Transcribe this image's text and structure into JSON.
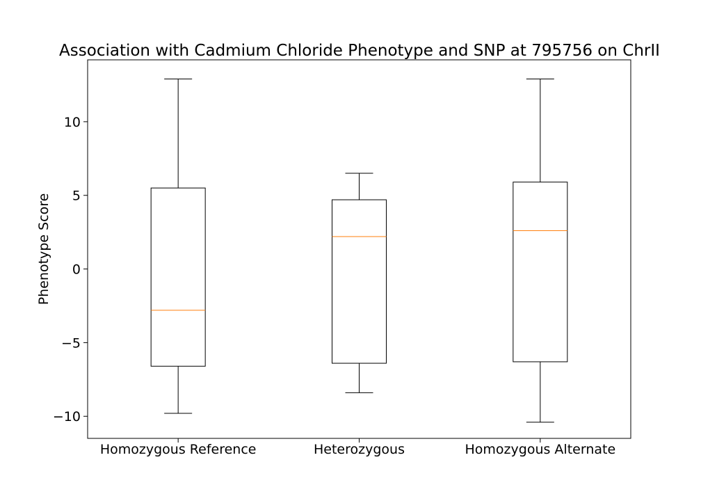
{
  "chart_data": {
    "type": "box",
    "title": "Association with Cadmium Chloride Phenotype and SNP at 795756 on ChrII",
    "xlabel": "",
    "ylabel": "Phenotype Score",
    "ylim": [
      -11.5,
      14.2
    ],
    "yticks": [
      10,
      5,
      0,
      -5,
      -10
    ],
    "ytick_labels": [
      "10",
      "5",
      "0",
      "−5",
      "−10"
    ],
    "grid": false,
    "categories": [
      "Homozygous Reference",
      "Heterozygous",
      "Homozygous Alternate"
    ],
    "boxes": [
      {
        "category": "Homozygous Reference",
        "whisker_low": -9.8,
        "q1": -6.6,
        "median": -2.8,
        "q3": 5.5,
        "whisker_high": 12.9
      },
      {
        "category": "Heterozygous",
        "whisker_low": -8.4,
        "q1": -6.4,
        "median": 2.2,
        "q3": 4.7,
        "whisker_high": 6.5
      },
      {
        "category": "Homozygous Alternate",
        "whisker_low": -10.4,
        "q1": -6.3,
        "median": 2.6,
        "q3": 5.9,
        "whisker_high": 12.9
      }
    ],
    "colors": {
      "box": "#000000",
      "median": "#ff7f0e"
    }
  }
}
